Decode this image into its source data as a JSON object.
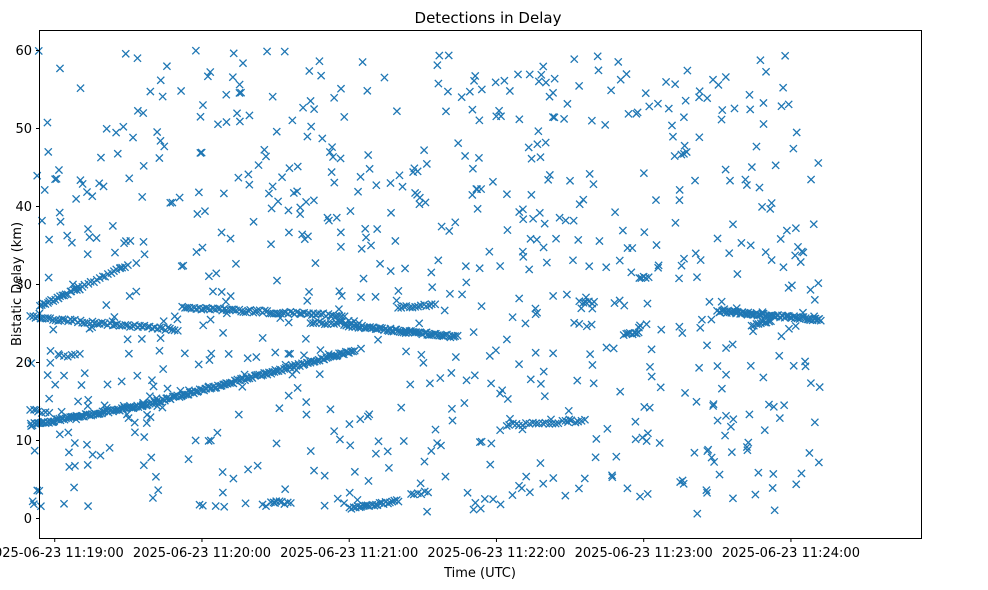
{
  "chart_data": {
    "type": "scatter",
    "title": "Detections in Delay",
    "xlabel": "Time (UTC)",
    "ylabel": "Bistatic Delay (km)",
    "marker": "x",
    "color": "#1f77b4",
    "xlim_seconds": [
      -186,
      173
    ],
    "ylim": [
      -2.5,
      62.5
    ],
    "x_ticks": [
      {
        "t": -180,
        "label": "2025-06-23 11:19:00"
      },
      {
        "t": -120,
        "label": "2025-06-23 11:20:00"
      },
      {
        "t": -60,
        "label": "2025-06-23 11:21:00"
      },
      {
        "t": 0,
        "label": "2025-06-23 11:22:00"
      },
      {
        "t": 60,
        "label": "2025-06-23 11:23:00"
      },
      {
        "t": 120,
        "label": "2025-06-23 11:24:00"
      }
    ],
    "y_ticks": [
      0,
      10,
      20,
      30,
      40,
      50,
      60
    ],
    "time_origin": "2025-06-23 11:22:00",
    "time_span_seconds": [
      -190,
      132
    ],
    "tracks": [
      {
        "name": "track-a",
        "t_start": -190,
        "t_end": -144,
        "y_start": 12.0,
        "y_end": 14.5,
        "count": 80
      },
      {
        "name": "track-b",
        "t_start": -144,
        "t_end": -58,
        "y_start": 14.5,
        "y_end": 21.5,
        "count": 130
      },
      {
        "name": "track-c",
        "t_start": -190,
        "t_end": -130,
        "y_start": 25.8,
        "y_end": 24.2,
        "count": 60
      },
      {
        "name": "track-d",
        "t_start": -186,
        "t_end": -170,
        "y_start": 27.2,
        "y_end": 29.5,
        "count": 22
      },
      {
        "name": "track-e",
        "t_start": -170,
        "t_end": -150,
        "y_start": 29.5,
        "y_end": 32.5,
        "count": 18
      },
      {
        "name": "track-f",
        "t_start": -128,
        "t_end": -62,
        "y_start": 27.0,
        "y_end": 26.0,
        "count": 70
      },
      {
        "name": "track-g",
        "t_start": -62,
        "t_end": -16,
        "y_start": 24.8,
        "y_end": 23.3,
        "count": 70
      },
      {
        "name": "track-h",
        "t_start": -40,
        "t_end": -25,
        "y_start": 27.0,
        "y_end": 27.4,
        "count": 14
      },
      {
        "name": "track-i",
        "t_start": -60,
        "t_end": -40,
        "y_start": 1.3,
        "y_end": 2.3,
        "count": 25
      },
      {
        "name": "track-j",
        "t_start": -92,
        "t_end": -84,
        "y_start": 2.2,
        "y_end": 1.9,
        "count": 8
      },
      {
        "name": "track-k",
        "t_start": 4,
        "t_end": 36,
        "y_start": 12.0,
        "y_end": 12.5,
        "count": 25
      },
      {
        "name": "track-l",
        "t_start": 90,
        "t_end": 132,
        "y_start": 26.6,
        "y_end": 25.5,
        "count": 70
      },
      {
        "name": "track-m",
        "t_start": 104,
        "t_end": 112,
        "y_start": 24.8,
        "y_end": 25.3,
        "count": 10
      },
      {
        "name": "track-n",
        "t_start": 52,
        "t_end": 58,
        "y_start": 23.6,
        "y_end": 23.7,
        "count": 8
      },
      {
        "name": "track-o",
        "t_start": 34,
        "t_end": 40,
        "y_start": 27.8,
        "y_end": 27.7,
        "count": 6
      },
      {
        "name": "track-p",
        "t_start": 58,
        "t_end": 62,
        "y_start": 30.8,
        "y_end": 31.0,
        "count": 5
      },
      {
        "name": "track-q",
        "t_start": -190,
        "t_end": -182,
        "y_start": 14.0,
        "y_end": 13.5,
        "count": 6
      },
      {
        "name": "track-r",
        "t_start": -178,
        "t_end": -170,
        "y_start": 20.8,
        "y_end": 21.0,
        "count": 6
      },
      {
        "name": "track-s",
        "t_start": -35,
        "t_end": -28,
        "y_start": 3.0,
        "y_end": 3.4,
        "count": 6
      },
      {
        "name": "track-t",
        "t_start": -76,
        "t_end": -58,
        "y_start": 25.0,
        "y_end": 25.2,
        "count": 16
      }
    ],
    "background_scatter": {
      "count": 760,
      "seed": 20250623,
      "y_range": [
        0.5,
        60
      ],
      "t_range": [
        -190,
        132
      ]
    }
  }
}
